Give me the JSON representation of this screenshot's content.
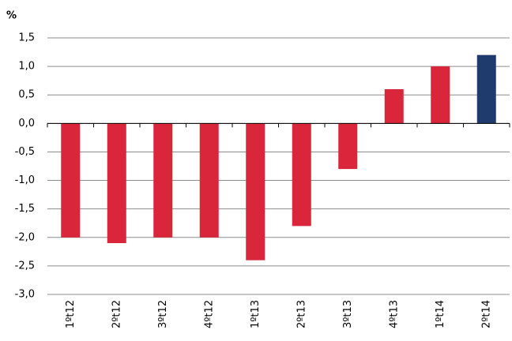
{
  "chart_data": {
    "type": "bar",
    "y_label": "%",
    "categories": [
      "1ºt12",
      "2ºt12",
      "3ºt12",
      "4ºt12",
      "1ºt13",
      "2ºt13",
      "3ºt13",
      "4ºt13",
      "1ºt14",
      "2ºt14"
    ],
    "values": [
      -2.0,
      -2.1,
      -2.0,
      -2.0,
      -2.4,
      -1.8,
      -0.8,
      0.6,
      1.0,
      1.2
    ],
    "colors": [
      "#d9263a",
      "#d9263a",
      "#d9263a",
      "#d9263a",
      "#d9263a",
      "#d9263a",
      "#d9263a",
      "#d9263a",
      "#d9263a",
      "#1f3b6e"
    ],
    "ylim": [
      -3.0,
      1.5
    ],
    "yticks": [
      {
        "value": 1.5,
        "label": "1,5"
      },
      {
        "value": 1.0,
        "label": "1,0"
      },
      {
        "value": 0.5,
        "label": "0,5"
      },
      {
        "value": 0,
        "label": "0,0"
      },
      {
        "value": -0.5,
        "label": "-0,5"
      },
      {
        "value": -1.0,
        "label": "-1,0"
      },
      {
        "value": -1.5,
        "label": "-1,5"
      },
      {
        "value": -2.0,
        "label": "-2,0"
      },
      {
        "value": -2.5,
        "label": "-2,5"
      },
      {
        "value": -3.0,
        "label": "-3,0"
      }
    ],
    "grid": true
  }
}
